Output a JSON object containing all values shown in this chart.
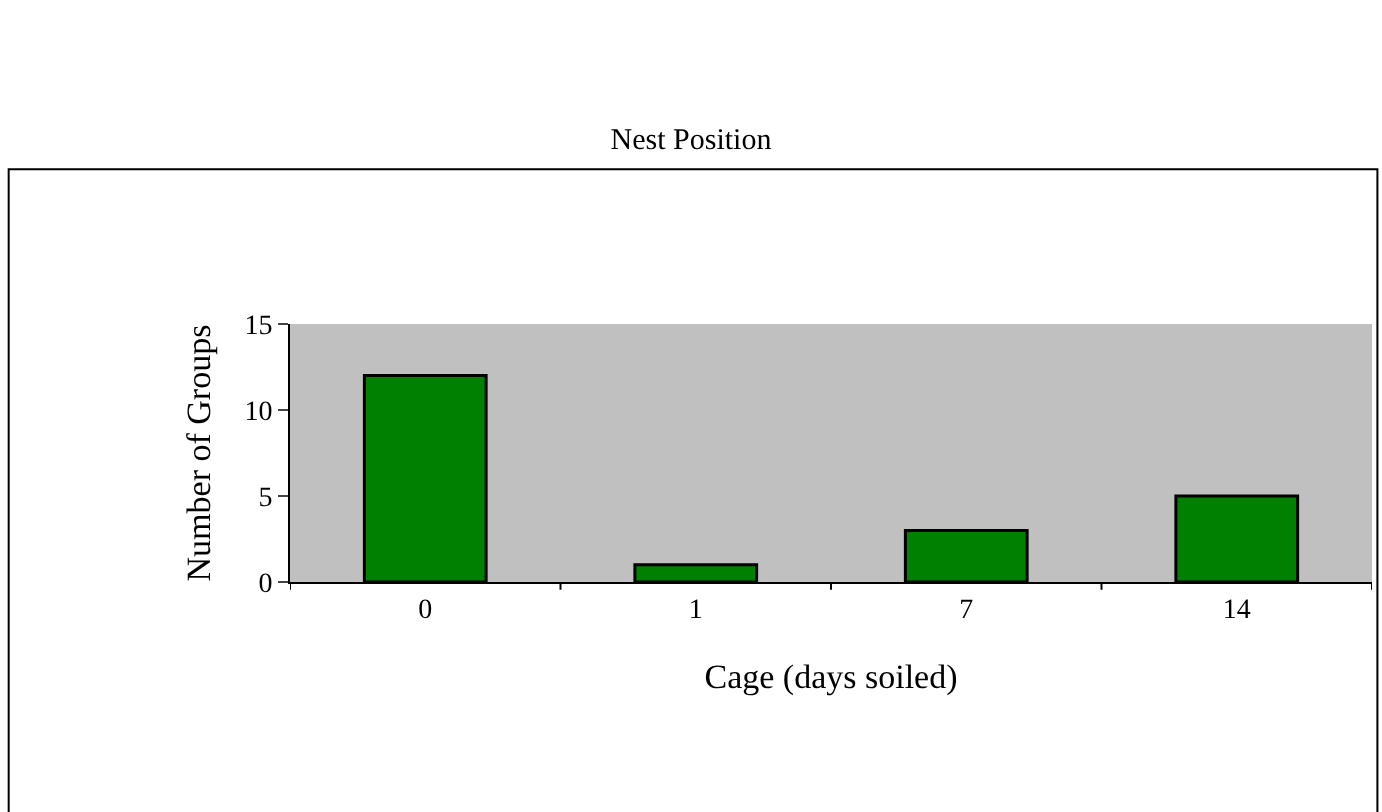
{
  "chart_data": {
    "type": "bar",
    "title": "Nest Position",
    "xlabel": "Cage (days soiled)",
    "ylabel": "Number of Groups",
    "categories": [
      "0",
      "1",
      "7",
      "14"
    ],
    "values": [
      12,
      1,
      3,
      5
    ],
    "color": "#008000",
    "ylim": [
      0,
      15
    ],
    "yticks": [
      0,
      5,
      10,
      15
    ],
    "grid": false
  }
}
